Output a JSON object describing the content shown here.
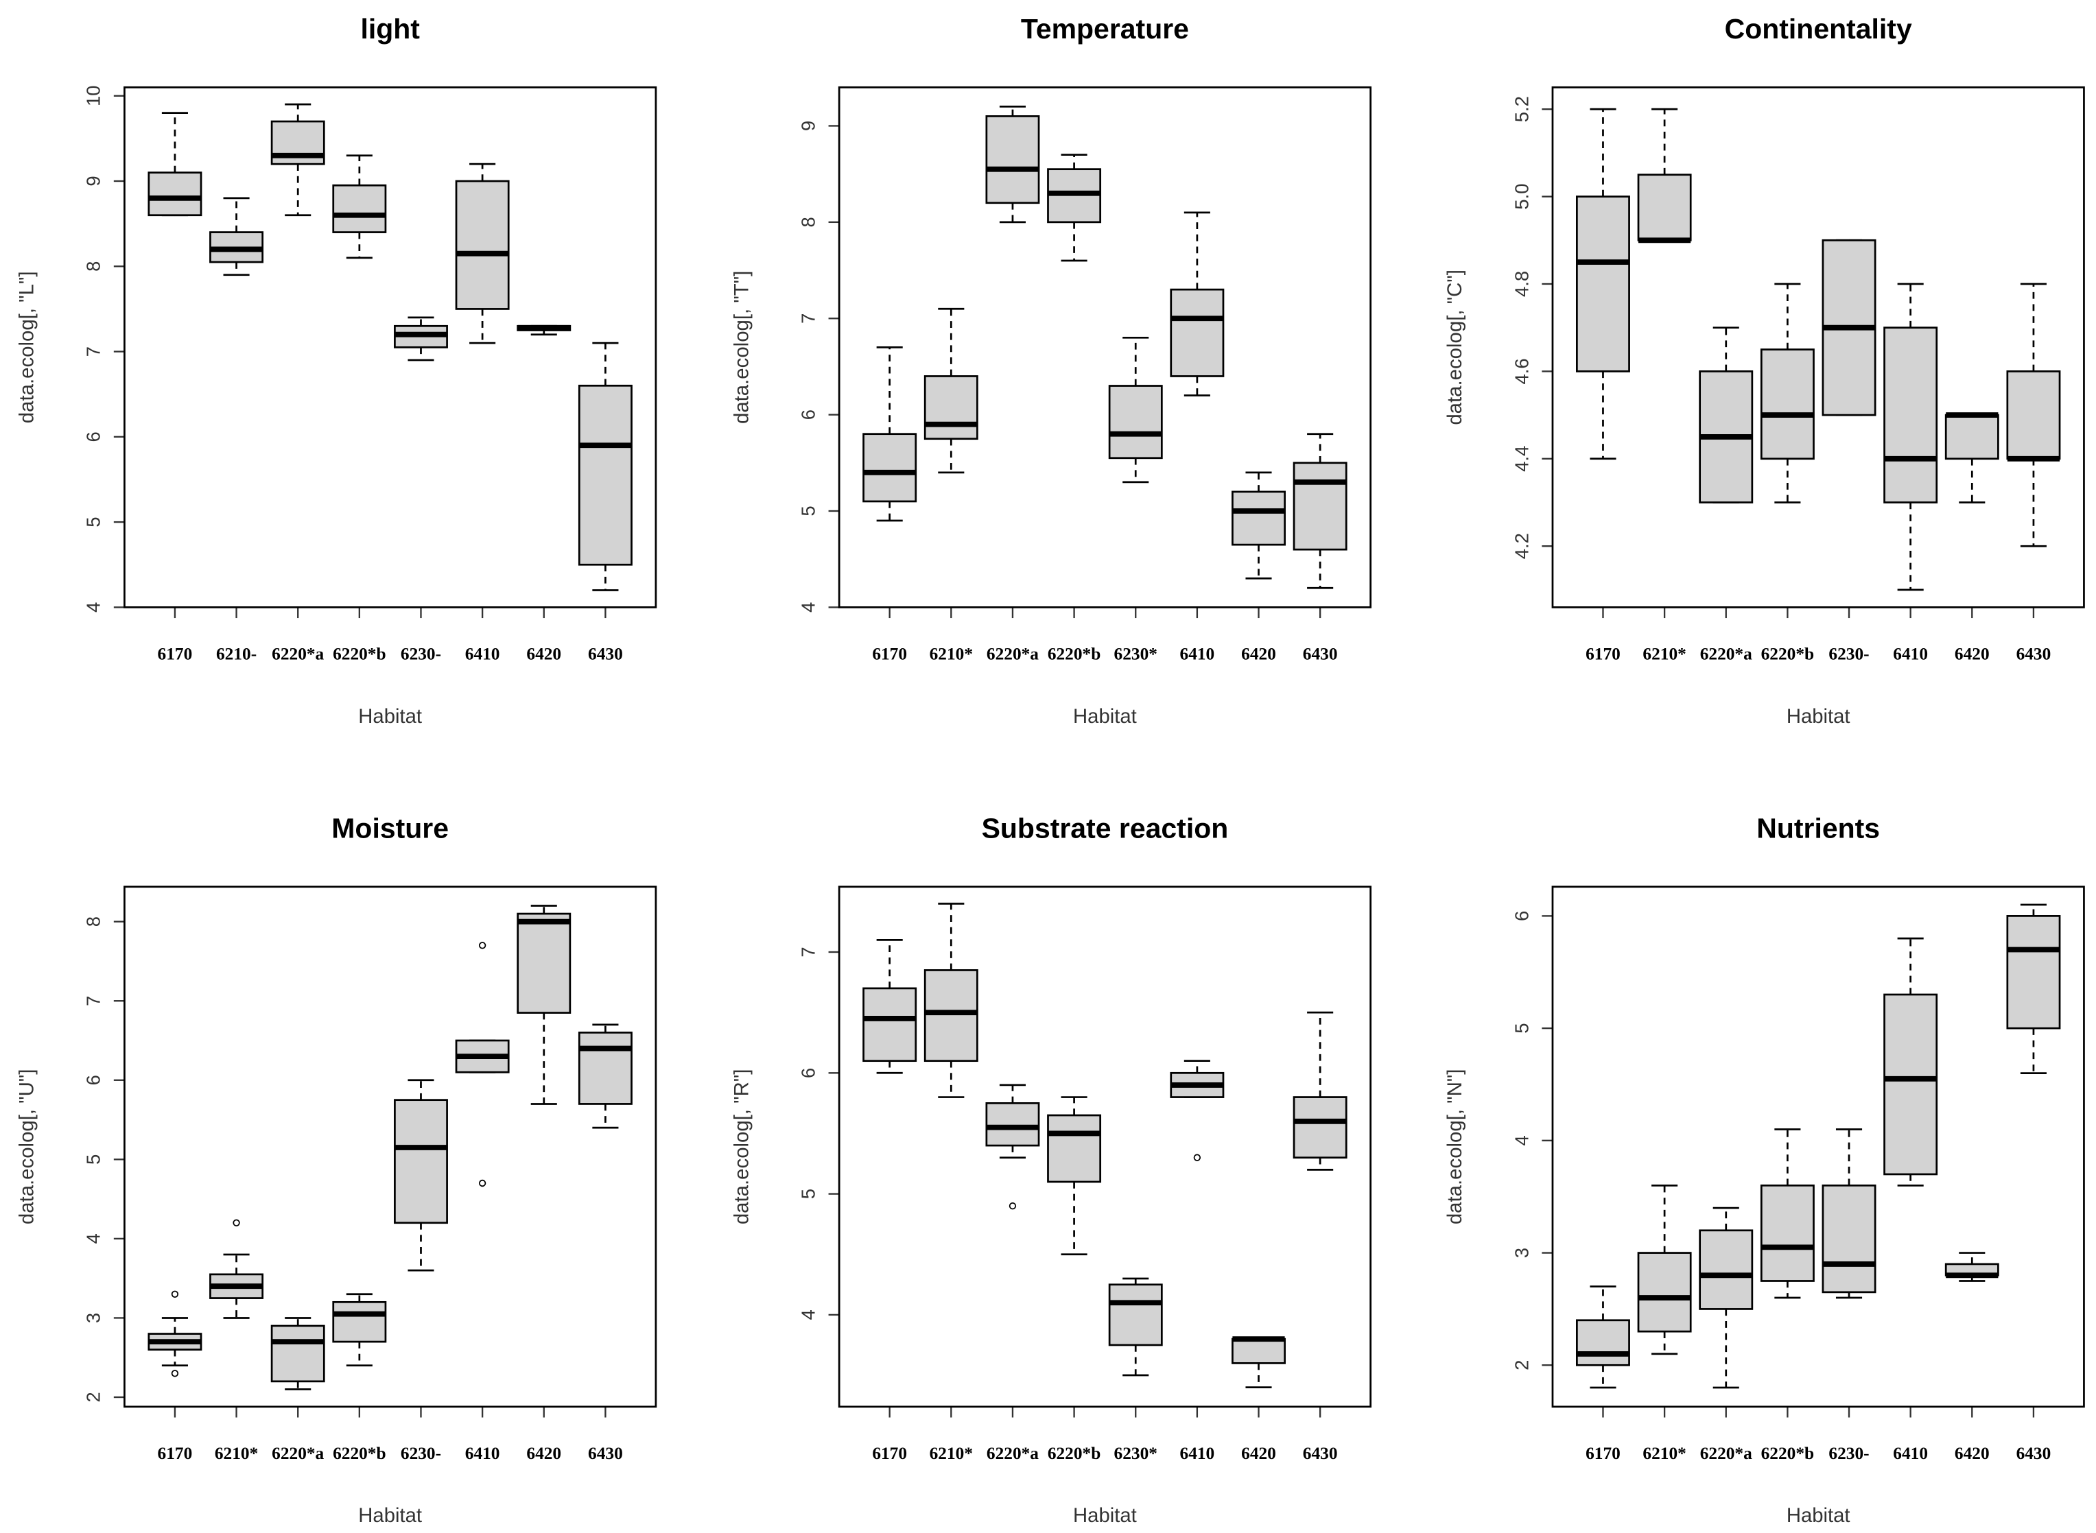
{
  "chart_data": [
    {
      "type": "box",
      "title": "light",
      "xlabel": "Habitat",
      "ylabel": "data.ecolog[, \"L\"]",
      "color": "#d3d3d3",
      "categories": [
        "6170",
        "6210-",
        "6220*a",
        "6220*b",
        "6230-",
        "6410",
        "6420",
        "6430"
      ],
      "ylim": [
        4,
        10.1
      ],
      "yticks": [
        4,
        5,
        6,
        7,
        8,
        9,
        10
      ],
      "boxes": [
        {
          "whislo": 8.6,
          "q1": 8.6,
          "med": 8.8,
          "q3": 9.1,
          "whishi": 9.8
        },
        {
          "whislo": 7.9,
          "q1": 8.05,
          "med": 8.2,
          "q3": 8.4,
          "whishi": 8.8
        },
        {
          "whislo": 8.6,
          "q1": 9.2,
          "med": 9.3,
          "q3": 9.7,
          "whishi": 9.9
        },
        {
          "whislo": 8.1,
          "q1": 8.4,
          "med": 8.6,
          "q3": 8.95,
          "whishi": 9.3
        },
        {
          "whislo": 6.9,
          "q1": 7.05,
          "med": 7.2,
          "q3": 7.3,
          "whishi": 7.4
        },
        {
          "whislo": 7.1,
          "q1": 7.5,
          "med": 8.15,
          "q3": 9.0,
          "whishi": 9.2
        },
        {
          "whislo": 7.2,
          "q1": 7.25,
          "med": 7.28,
          "q3": 7.3,
          "whishi": 7.3
        },
        {
          "whislo": 4.2,
          "q1": 4.5,
          "med": 5.9,
          "q3": 6.6,
          "whishi": 7.1
        }
      ]
    },
    {
      "type": "box",
      "title": "Temperature",
      "xlabel": "Habitat",
      "ylabel": "data.ecolog[, \"T\"]",
      "color": "#d3d3d3",
      "categories": [
        "6170",
        "6210*",
        "6220*a",
        "6220*b",
        "6230*",
        "6410",
        "6420",
        "6430"
      ],
      "ylim": [
        4,
        9.4
      ],
      "yticks": [
        4,
        5,
        6,
        7,
        8,
        9
      ],
      "boxes": [
        {
          "whislo": 4.9,
          "q1": 5.1,
          "med": 5.4,
          "q3": 5.8,
          "whishi": 6.7
        },
        {
          "whislo": 5.4,
          "q1": 5.75,
          "med": 5.9,
          "q3": 6.4,
          "whishi": 7.1
        },
        {
          "whislo": 8.0,
          "q1": 8.2,
          "med": 8.55,
          "q3": 9.1,
          "whishi": 9.2
        },
        {
          "whislo": 7.6,
          "q1": 8.0,
          "med": 8.3,
          "q3": 8.55,
          "whishi": 8.7
        },
        {
          "whislo": 5.3,
          "q1": 5.55,
          "med": 5.8,
          "q3": 6.3,
          "whishi": 6.8
        },
        {
          "whislo": 6.2,
          "q1": 6.4,
          "med": 7.0,
          "q3": 7.3,
          "whishi": 8.1
        },
        {
          "whislo": 4.3,
          "q1": 4.65,
          "med": 5.0,
          "q3": 5.2,
          "whishi": 5.4
        },
        {
          "whislo": 4.2,
          "q1": 4.6,
          "med": 5.3,
          "q3": 5.5,
          "whishi": 5.8
        }
      ]
    },
    {
      "type": "box",
      "title": "Continentality",
      "xlabel": "Habitat",
      "ylabel": "data.ecolog[, \"C\"]",
      "color": "#d3d3d3",
      "categories": [
        "6170",
        "6210*",
        "6220*a",
        "6220*b",
        "6230-",
        "6410",
        "6420",
        "6430"
      ],
      "ylim": [
        4.06,
        5.25
      ],
      "yticks": [
        4.2,
        4.4,
        {
          "value": 4.6,
          "label": "4.6"
        },
        4.8,
        {
          "value": 5.0,
          "label": "5.0"
        },
        5.2
      ],
      "boxes": [
        {
          "whislo": 4.4,
          "q1": 4.6,
          "med": 4.85,
          "q3": 5.0,
          "whishi": 5.2
        },
        {
          "whislo": 4.9,
          "q1": 4.9,
          "med": 4.9,
          "q3": 5.05,
          "whishi": 5.2
        },
        {
          "whislo": 4.3,
          "q1": 4.3,
          "med": 4.45,
          "q3": 4.6,
          "whishi": 4.7
        },
        {
          "whislo": 4.3,
          "q1": 4.4,
          "med": 4.5,
          "q3": 4.65,
          "whishi": 4.8
        },
        {
          "whislo": 4.5,
          "q1": 4.5,
          "med": 4.7,
          "q3": 4.9,
          "whishi": 4.9
        },
        {
          "whislo": 4.1,
          "q1": 4.3,
          "med": 4.4,
          "q3": 4.7,
          "whishi": 4.8
        },
        {
          "whislo": 4.3,
          "q1": 4.4,
          "med": 4.5,
          "q3": 4.5,
          "whishi": 4.5
        },
        {
          "whislo": 4.2,
          "q1": 4.4,
          "med": 4.4,
          "q3": 4.6,
          "whishi": 4.8
        }
      ]
    },
    {
      "type": "box",
      "title": "Moisture",
      "xlabel": "Habitat",
      "ylabel": "data.ecolog[, \"U\"]",
      "color": "#d3d3d3",
      "categories": [
        "6170",
        "6210*",
        "6220*a",
        "6220*b",
        "6230-",
        "6410",
        "6420",
        "6430"
      ],
      "ylim": [
        1.88,
        8.44
      ],
      "yticks": [
        2,
        3,
        4,
        5,
        6,
        7,
        8
      ],
      "boxes": [
        {
          "whislo": 2.4,
          "q1": 2.6,
          "med": 2.7,
          "q3": 2.8,
          "whishi": 3.0,
          "fliers": [
            3.3,
            2.3
          ]
        },
        {
          "whislo": 3.0,
          "q1": 3.25,
          "med": 3.4,
          "q3": 3.55,
          "whishi": 3.8,
          "fliers": [
            4.2
          ]
        },
        {
          "whislo": 2.1,
          "q1": 2.2,
          "med": 2.7,
          "q3": 2.9,
          "whishi": 3.0
        },
        {
          "whislo": 2.4,
          "q1": 2.7,
          "med": 3.05,
          "q3": 3.2,
          "whishi": 3.3
        },
        {
          "whislo": 3.6,
          "q1": 4.2,
          "med": 5.15,
          "q3": 5.75,
          "whishi": 6.0
        },
        {
          "whislo": 6.1,
          "q1": 6.1,
          "med": 6.3,
          "q3": 6.5,
          "whishi": 6.5,
          "fliers": [
            7.7,
            4.7
          ]
        },
        {
          "whislo": 5.7,
          "q1": 6.85,
          "med": 8.0,
          "q3": 8.1,
          "whishi": 8.2
        },
        {
          "whislo": 5.4,
          "q1": 5.7,
          "med": 6.4,
          "q3": 6.6,
          "whishi": 6.7
        }
      ]
    },
    {
      "type": "box",
      "title": "Substrate reaction",
      "xlabel": "Habitat",
      "ylabel": "data.ecolog[, \"R\"]",
      "color": "#d3d3d3",
      "categories": [
        "6170",
        "6210*",
        "6220*a",
        "6220*b",
        "6230*",
        "6410",
        "6420",
        "6430"
      ],
      "ylim": [
        3.24,
        7.54
      ],
      "yticks": [
        4,
        5,
        6,
        7
      ],
      "boxes": [
        {
          "whislo": 6.0,
          "q1": 6.1,
          "med": 6.45,
          "q3": 6.7,
          "whishi": 7.1
        },
        {
          "whislo": 5.8,
          "q1": 6.1,
          "med": 6.5,
          "q3": 6.85,
          "whishi": 7.4
        },
        {
          "whislo": 5.3,
          "q1": 5.4,
          "med": 5.55,
          "q3": 5.75,
          "whishi": 5.9,
          "fliers": [
            4.9
          ]
        },
        {
          "whislo": 4.5,
          "q1": 5.1,
          "med": 5.5,
          "q3": 5.65,
          "whishi": 5.8
        },
        {
          "whislo": 3.5,
          "q1": 3.75,
          "med": 4.1,
          "q3": 4.25,
          "whishi": 4.3
        },
        {
          "whislo": 5.8,
          "q1": 5.8,
          "med": 5.9,
          "q3": 6.0,
          "whishi": 6.1,
          "fliers": [
            5.3
          ]
        },
        {
          "whislo": 3.4,
          "q1": 3.6,
          "med": 3.8,
          "q3": 3.8,
          "whishi": 3.8
        },
        {
          "whislo": 5.2,
          "q1": 5.3,
          "med": 5.6,
          "q3": 5.8,
          "whishi": 6.5
        }
      ]
    },
    {
      "type": "box",
      "title": "Nutrients",
      "xlabel": "Habitat",
      "ylabel": "data.ecolog[, \"N\"]",
      "color": "#d3d3d3",
      "categories": [
        "6170",
        "6210*",
        "6220*a",
        "6220*b",
        "6230-",
        "6410",
        "6420",
        "6430"
      ],
      "ylim": [
        1.63,
        6.26
      ],
      "yticks": [
        2,
        3,
        4,
        5,
        6
      ],
      "boxes": [
        {
          "whislo": 1.8,
          "q1": 2.0,
          "med": 2.1,
          "q3": 2.4,
          "whishi": 2.7
        },
        {
          "whislo": 2.1,
          "q1": 2.3,
          "med": 2.6,
          "q3": 3.0,
          "whishi": 3.6
        },
        {
          "whislo": 1.8,
          "q1": 2.5,
          "med": 2.8,
          "q3": 3.2,
          "whishi": 3.4
        },
        {
          "whislo": 2.6,
          "q1": 2.75,
          "med": 3.05,
          "q3": 3.6,
          "whishi": 4.1
        },
        {
          "whislo": 2.6,
          "q1": 2.65,
          "med": 2.9,
          "q3": 3.6,
          "whishi": 4.1
        },
        {
          "whislo": 3.6,
          "q1": 3.7,
          "med": 4.55,
          "q3": 5.3,
          "whishi": 5.8
        },
        {
          "whislo": 2.75,
          "q1": 2.8,
          "med": 2.8,
          "q3": 2.9,
          "whishi": 3.0
        },
        {
          "whislo": 4.6,
          "q1": 5.0,
          "med": 5.7,
          "q3": 6.0,
          "whishi": 6.1
        }
      ]
    }
  ]
}
